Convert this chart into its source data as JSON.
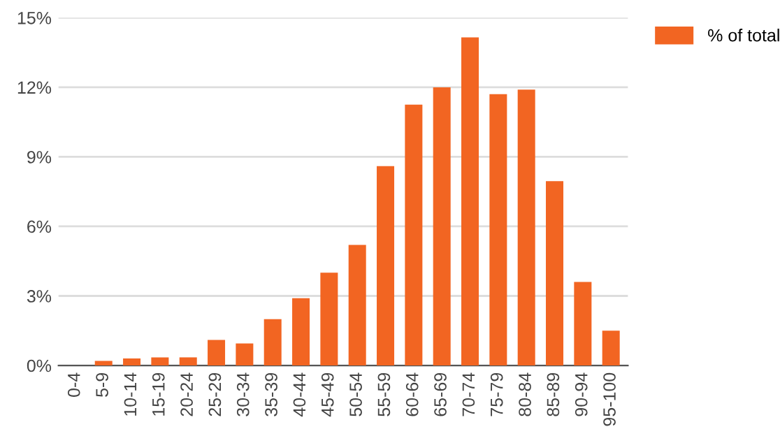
{
  "chart_data": {
    "type": "bar",
    "categories": [
      "0-4",
      "5-9",
      "10-14",
      "15-19",
      "20-24",
      "25-29",
      "30-34",
      "35-39",
      "40-44",
      "45-49",
      "50-54",
      "55-59",
      "60-64",
      "65-69",
      "70-74",
      "75-79",
      "80-84",
      "85-89",
      "90-94",
      "95-100"
    ],
    "series": [
      {
        "name": "% of total",
        "color": "#f26522",
        "values": [
          0,
          0.2,
          0.3,
          0.35,
          0.35,
          1.1,
          0.95,
          2.0,
          2.9,
          4.0,
          5.2,
          8.6,
          11.25,
          12.0,
          14.15,
          11.7,
          11.9,
          7.95,
          3.6,
          1.5
        ]
      }
    ],
    "ylim": [
      0,
      15
    ],
    "yticks": [
      {
        "value": 0,
        "label": "0%"
      },
      {
        "value": 3,
        "label": "3%"
      },
      {
        "value": 6,
        "label": "6%"
      },
      {
        "value": 9,
        "label": "9%"
      },
      {
        "value": 12,
        "label": "12%"
      },
      {
        "value": 15,
        "label": "15%"
      }
    ],
    "grid": "y",
    "legend": "top right"
  }
}
